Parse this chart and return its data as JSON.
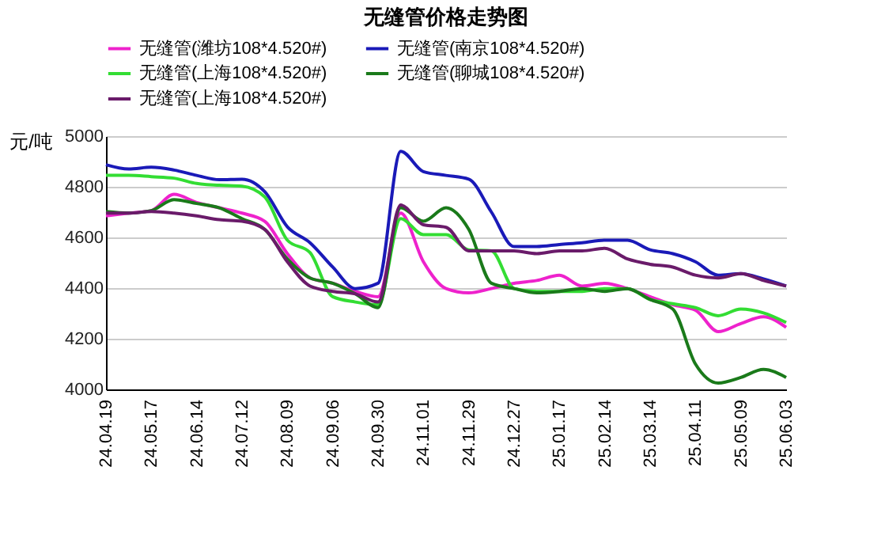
{
  "chart_data": {
    "type": "line",
    "title": "无缝管价格走势图",
    "ylabel": "元/吨",
    "categories": [
      "24.04.19",
      null,
      "24.05.17",
      null,
      "24.06.14",
      null,
      "24.07.12",
      null,
      "24.08.09",
      null,
      "24.09.06",
      null,
      "24.09.30",
      null,
      "24.11.01",
      null,
      "24.11.29",
      null,
      "24.12.27",
      null,
      "25.01.17",
      null,
      "25.02.14",
      null,
      "25.03.14",
      null,
      "25.04.11",
      null,
      "25.05.09",
      null,
      "25.06.03"
    ],
    "series": [
      {
        "name": "无缝管(潍坊108*4.520#)",
        "color": "#ee22cc",
        "values": [
          4685,
          4696,
          4706,
          4770,
          4738,
          4717,
          4696,
          4664,
          4536,
          4440,
          4419,
          4387,
          4366,
          4696,
          4504,
          4398,
          4381,
          4398,
          4419,
          4430,
          4451,
          4408,
          4419,
          4398,
          4366,
          4334,
          4313,
          4228,
          4260,
          4287,
          4245
        ]
      },
      {
        "name": "无缝管(南京108*4.520#)",
        "color": "#1a1ab8",
        "values": [
          4887,
          4870,
          4877,
          4866,
          4845,
          4828,
          4830,
          4781,
          4642,
          4579,
          4483,
          4398,
          4419,
          4940,
          4860,
          4845,
          4830,
          4700,
          4564,
          4564,
          4572,
          4579,
          4589,
          4589,
          4551,
          4536,
          4504,
          4451,
          4457,
          4436,
          4408
        ]
      },
      {
        "name": "无缝管(上海108*4.520#)",
        "color": "#33dd33",
        "values": [
          4845,
          4845,
          4840,
          4834,
          4813,
          4806,
          4802,
          4760,
          4589,
          4540,
          4366,
          4345,
          4334,
          4674,
          4611,
          4611,
          4551,
          4547,
          4398,
          4387,
          4387,
          4387,
          4398,
          4398,
          4355,
          4338,
          4323,
          4291,
          4317,
          4302,
          4264
        ]
      },
      {
        "name": "无缝管(聊城108*4.520#)",
        "color": "#1a7a1a",
        "values": [
          4702,
          4696,
          4706,
          4749,
          4734,
          4717,
          4674,
          4632,
          4515,
          4440,
          4419,
          4377,
          4323,
          4717,
          4664,
          4717,
          4632,
          4419,
          4398,
          4381,
          4387,
          4398,
          4387,
          4398,
          4355,
          4317,
          4100,
          4025,
          4047,
          4079,
          4047
        ]
      },
      {
        "name": "无缝管(上海108*4.520#)",
        "color": "#6a1b6a",
        "values": [
          4696,
          4696,
          4702,
          4696,
          4685,
          4670,
          4664,
          4632,
          4504,
          4408,
          4387,
          4377,
          4345,
          4728,
          4650,
          4640,
          4547,
          4547,
          4547,
          4536,
          4547,
          4547,
          4557,
          4515,
          4494,
          4483,
          4451,
          4440,
          4457,
          4430,
          4408
        ]
      }
    ],
    "ylim": [
      4000,
      5000
    ],
    "yticks": [
      4000,
      4200,
      4400,
      4600,
      4800,
      5000
    ],
    "grid": "y",
    "legend": "top",
    "marker": "none",
    "line_style": "solid"
  }
}
